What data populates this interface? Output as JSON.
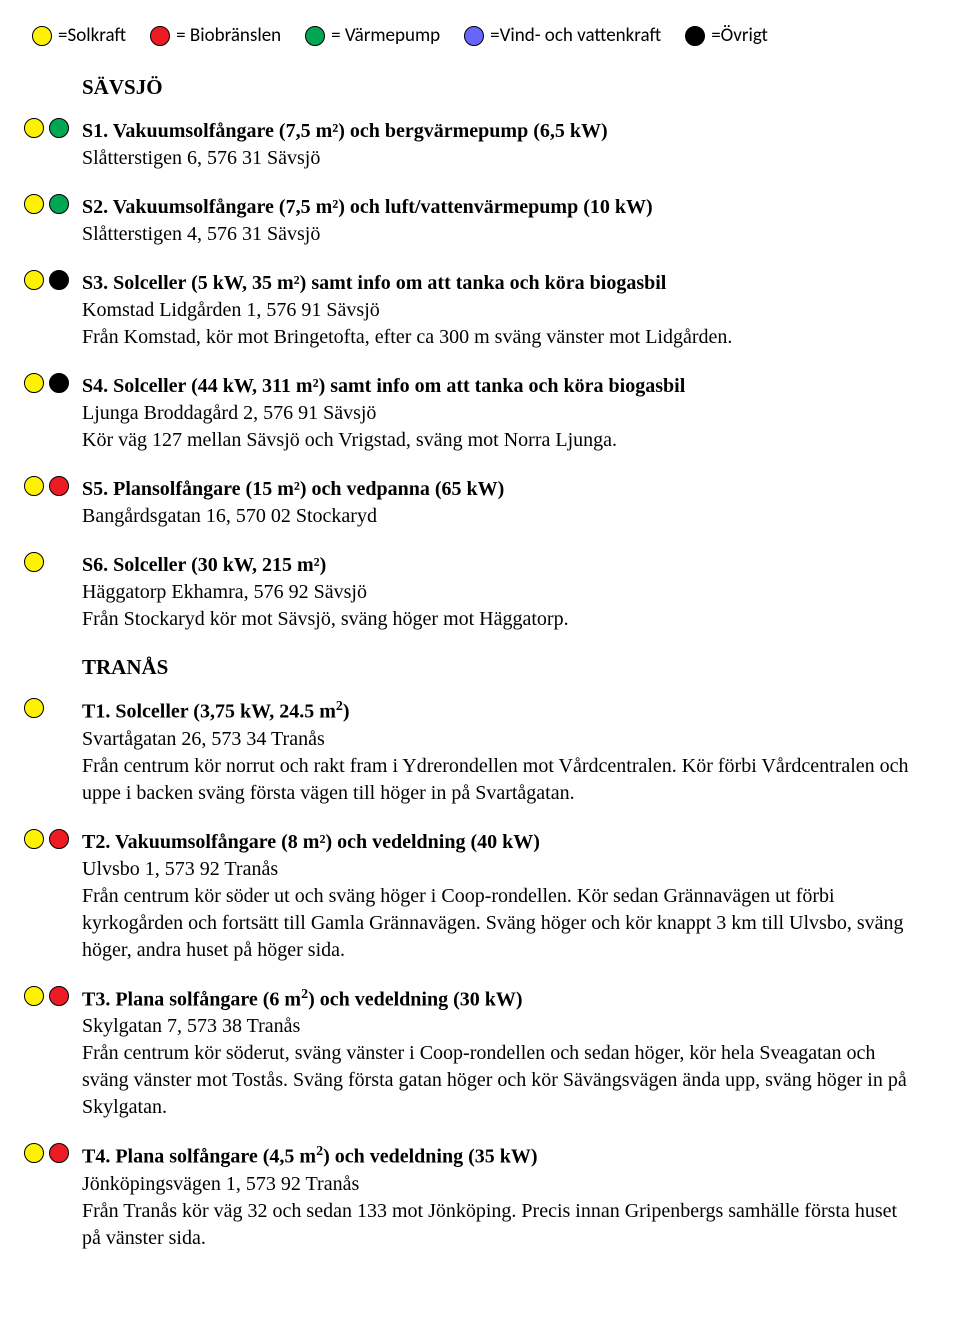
{
  "colors": {
    "solkraft": "#fff200",
    "biobranslen": "#ed1c24",
    "varmepump": "#00a651",
    "vind": "#6666ff",
    "ovrigt": "#000000",
    "stroke": "#000000"
  },
  "legend": [
    {
      "color": "solkraft",
      "label": "=Solkraft"
    },
    {
      "color": "biobranslen",
      "label": "= Biobränslen"
    },
    {
      "color": "varmepump",
      "label": "= Värmepump"
    },
    {
      "color": "vind",
      "label": "=Vind- och vattenkraft"
    },
    {
      "color": "ovrigt",
      "label": "=Övrigt"
    }
  ],
  "sections": [
    {
      "heading": "SÄVSJÖ",
      "entries": [
        {
          "markers": [
            "solkraft",
            "varmepump"
          ],
          "title": "S1. Vakuumsolfångare (7,5 m²) och bergvärmepump (6,5 kW)",
          "lines": [
            "Slåtterstigen 6, 576 31 Sävsjö"
          ]
        },
        {
          "markers": [
            "solkraft",
            "varmepump"
          ],
          "title": "S2. Vakuumsolfångare (7,5 m²) och luft/vattenvärmepump (10 kW)",
          "lines": [
            "Slåtterstigen 4, 576 31 Sävsjö"
          ]
        },
        {
          "markers": [
            "solkraft",
            "ovrigt"
          ],
          "title": "S3. Solceller (5 kW, 35 m²) samt info om att tanka och köra biogasbil",
          "lines": [
            "Komstad Lidgården 1, 576 91 Sävsjö",
            "Från Komstad, kör mot Bringetofta, efter ca 300 m sväng vänster mot Lidgården."
          ]
        },
        {
          "markers": [
            "solkraft",
            "ovrigt"
          ],
          "title": "S4. Solceller (44 kW, 311 m²) samt info om att tanka och köra biogasbil",
          "lines": [
            "Ljunga Broddagård 2,  576 91 Sävsjö",
            "Kör väg 127 mellan Sävsjö och Vrigstad, sväng mot Norra Ljunga."
          ]
        },
        {
          "markers": [
            "solkraft",
            "biobranslen"
          ],
          "title": "S5. Plansolfångare (15 m²) och vedpanna (65 kW)",
          "lines": [
            "Bangårdsgatan 16, 570 02 Stockaryd"
          ]
        },
        {
          "markers": [
            "solkraft"
          ],
          "title": "S6. Solceller (30 kW, 215 m²)",
          "lines": [
            "Häggatorp Ekhamra, 576 92 Sävsjö",
            "Från Stockaryd kör mot Sävsjö, sväng höger mot Häggatorp."
          ]
        }
      ]
    },
    {
      "heading": "TRANÅS",
      "entries": [
        {
          "markers": [
            "solkraft"
          ],
          "title_html": "T1. Solceller (3,75 kW, 24.5 m<sup>2</sup>)",
          "lines": [
            "Svartågatan 26, 573 34 Tranås",
            "Från centrum kör norrut och rakt fram i Ydrerondellen mot Vårdcentralen. Kör förbi Vårdcentralen och uppe i backen sväng första vägen till höger in på Svartågatan."
          ]
        },
        {
          "markers": [
            "solkraft",
            "biobranslen"
          ],
          "title": "T2. Vakuumsolfångare (8 m²) och vedeldning (40 kW)",
          "lines": [
            "Ulvsbo 1, 573 92 Tranås",
            "Från centrum kör söder ut och sväng höger i Coop-rondellen. Kör sedan Grännavägen ut förbi kyrkogården och fortsätt till Gamla Grännavägen. Sväng höger och kör knappt 3 km till Ulvsbo, sväng höger, andra huset på höger sida."
          ]
        },
        {
          "markers": [
            "solkraft",
            "biobranslen"
          ],
          "title_html": "T3. Plana solfångare (6 m<sup>2</sup>) och vedeldning (30 kW)",
          "lines": [
            "Skylgatan 7, 573 38 Tranås",
            "Från centrum kör söderut, sväng vänster i Coop-rondellen och sedan höger, kör hela Sveagatan och sväng vänster mot Tostås. Sväng första gatan höger och kör Sävängsvägen ända upp, sväng höger in på Skylgatan."
          ]
        },
        {
          "markers": [
            "solkraft",
            "biobranslen"
          ],
          "title_html": "T4. Plana solfångare (4,5 m<sup>2</sup>) och vedeldning (35 kW)",
          "lines": [
            "Jönköpingsvägen 1, 573 92 Tranås",
            "Från Tranås kör väg 32 och sedan 133 mot Jönköping. Precis innan Gripenbergs samhälle första huset på vänster sida."
          ]
        }
      ]
    }
  ]
}
